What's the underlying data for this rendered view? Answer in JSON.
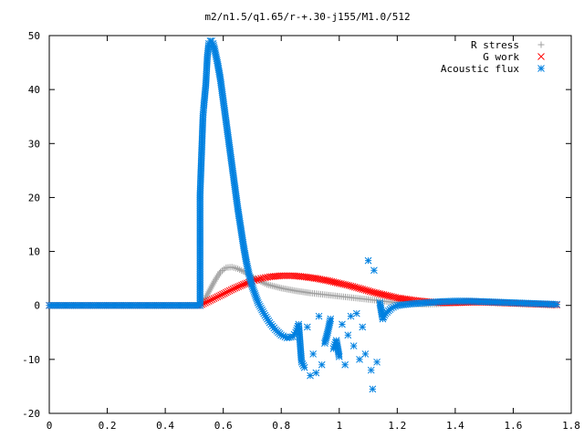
{
  "chart_data": {
    "type": "scatter",
    "title": "m2/n1.5/q1.65/r-+.30-j155/M1.0/512",
    "xlabel": "",
    "ylabel": "",
    "xlim": [
      0,
      1.8
    ],
    "ylim": [
      -20,
      50
    ],
    "x_ticks": [
      "0",
      "0.2",
      "0.4",
      "0.6",
      "0.8",
      "1",
      "1.2",
      "1.4",
      "1.6",
      "1.8"
    ],
    "y_ticks": [
      "-20",
      "-10",
      "0",
      "10",
      "20",
      "30",
      "40",
      "50"
    ],
    "grid": false,
    "legend_position": "top-right",
    "series": [
      {
        "name": "R stress",
        "marker": "plus",
        "color": "#a0a0a0",
        "points": [
          [
            0.0,
            0
          ],
          [
            0.1,
            0
          ],
          [
            0.2,
            0
          ],
          [
            0.3,
            0
          ],
          [
            0.4,
            0
          ],
          [
            0.5,
            0
          ],
          [
            0.52,
            0
          ],
          [
            0.53,
            0.5
          ],
          [
            0.55,
            2.5
          ],
          [
            0.57,
            4.5
          ],
          [
            0.59,
            6.2
          ],
          [
            0.61,
            7.0
          ],
          [
            0.63,
            7.1
          ],
          [
            0.65,
            6.8
          ],
          [
            0.67,
            6.3
          ],
          [
            0.69,
            5.6
          ],
          [
            0.71,
            5.0
          ],
          [
            0.73,
            4.4
          ],
          [
            0.75,
            3.9
          ],
          [
            0.8,
            3.2
          ],
          [
            0.85,
            2.7
          ],
          [
            0.9,
            2.3
          ],
          [
            0.95,
            2.0
          ],
          [
            1.0,
            1.7
          ],
          [
            1.05,
            1.4
          ],
          [
            1.1,
            1.1
          ],
          [
            1.15,
            0.8
          ],
          [
            1.2,
            0.5
          ],
          [
            1.25,
            0.3
          ],
          [
            1.3,
            0.2
          ],
          [
            1.35,
            0.3
          ],
          [
            1.4,
            0.5
          ],
          [
            1.45,
            0.6
          ],
          [
            1.5,
            0.6
          ],
          [
            1.55,
            0.5
          ],
          [
            1.6,
            0.4
          ],
          [
            1.65,
            0.3
          ],
          [
            1.7,
            0.2
          ],
          [
            1.75,
            0.1
          ]
        ]
      },
      {
        "name": "G work",
        "marker": "cross",
        "color": "#ff0000",
        "points": [
          [
            0.0,
            0
          ],
          [
            0.1,
            0
          ],
          [
            0.2,
            0
          ],
          [
            0.3,
            0
          ],
          [
            0.4,
            0
          ],
          [
            0.5,
            0
          ],
          [
            0.52,
            0
          ],
          [
            0.55,
            0.8
          ],
          [
            0.58,
            1.6
          ],
          [
            0.61,
            2.4
          ],
          [
            0.64,
            3.2
          ],
          [
            0.67,
            3.9
          ],
          [
            0.7,
            4.5
          ],
          [
            0.73,
            5.0
          ],
          [
            0.76,
            5.3
          ],
          [
            0.8,
            5.5
          ],
          [
            0.84,
            5.5
          ],
          [
            0.88,
            5.3
          ],
          [
            0.92,
            5.0
          ],
          [
            0.96,
            4.6
          ],
          [
            1.0,
            4.1
          ],
          [
            1.04,
            3.6
          ],
          [
            1.08,
            3.0
          ],
          [
            1.12,
            2.4
          ],
          [
            1.16,
            1.9
          ],
          [
            1.2,
            1.4
          ],
          [
            1.25,
            1.0
          ],
          [
            1.3,
            0.7
          ],
          [
            1.35,
            0.5
          ],
          [
            1.4,
            0.5
          ],
          [
            1.45,
            0.6
          ],
          [
            1.5,
            0.6
          ],
          [
            1.55,
            0.5
          ],
          [
            1.6,
            0.4
          ],
          [
            1.65,
            0.3
          ],
          [
            1.7,
            0.2
          ],
          [
            1.75,
            0.1
          ]
        ]
      },
      {
        "name": "Acoustic flux",
        "marker": "star",
        "color": "#0080e0",
        "points": [
          [
            0.0,
            0
          ],
          [
            0.1,
            0
          ],
          [
            0.2,
            0
          ],
          [
            0.3,
            0
          ],
          [
            0.4,
            0
          ],
          [
            0.5,
            0
          ],
          [
            0.52,
            0
          ],
          [
            0.52,
            20.5
          ],
          [
            0.53,
            35
          ],
          [
            0.533,
            37
          ],
          [
            0.54,
            41
          ],
          [
            0.545,
            46
          ],
          [
            0.55,
            48.5
          ],
          [
            0.555,
            49
          ],
          [
            0.56,
            49
          ],
          [
            0.565,
            48.5
          ],
          [
            0.57,
            47.5
          ],
          [
            0.58,
            45
          ],
          [
            0.59,
            42
          ],
          [
            0.6,
            38
          ],
          [
            0.61,
            34
          ],
          [
            0.62,
            30
          ],
          [
            0.63,
            26
          ],
          [
            0.64,
            22
          ],
          [
            0.65,
            18
          ],
          [
            0.66,
            14.5
          ],
          [
            0.67,
            11
          ],
          [
            0.68,
            8
          ],
          [
            0.69,
            5.5
          ],
          [
            0.7,
            3.5
          ],
          [
            0.72,
            0.5
          ],
          [
            0.74,
            -1.5
          ],
          [
            0.76,
            -3.2
          ],
          [
            0.78,
            -4.5
          ],
          [
            0.8,
            -5.5
          ],
          [
            0.82,
            -6.0
          ],
          [
            0.84,
            -5.8
          ],
          [
            0.85,
            -5.0
          ],
          [
            0.86,
            -3.5
          ],
          [
            0.87,
            -10.5
          ],
          [
            0.88,
            -11.5
          ],
          [
            0.89,
            -4.0
          ],
          [
            0.9,
            -13.0
          ],
          [
            0.91,
            -9.0
          ],
          [
            0.92,
            -12.5
          ],
          [
            0.93,
            -2.0
          ],
          [
            0.94,
            -11.0
          ],
          [
            0.95,
            -7.0
          ],
          [
            0.96,
            -5.0
          ],
          [
            0.97,
            -2.5
          ],
          [
            0.98,
            -8.0
          ],
          [
            0.99,
            -6.5
          ],
          [
            1.0,
            -9.5
          ],
          [
            1.01,
            -3.5
          ],
          [
            1.02,
            -11.0
          ],
          [
            1.03,
            -5.5
          ],
          [
            1.04,
            -2.0
          ],
          [
            1.05,
            -7.5
          ],
          [
            1.06,
            -1.5
          ],
          [
            1.07,
            -10.0
          ],
          [
            1.08,
            -4.0
          ],
          [
            1.09,
            -9.0
          ],
          [
            1.1,
            8.3
          ],
          [
            1.11,
            -12.0
          ],
          [
            1.115,
            -15.5
          ],
          [
            1.12,
            6.5
          ],
          [
            1.13,
            -10.5
          ],
          [
            1.14,
            0.5
          ],
          [
            1.15,
            -2.5
          ],
          [
            1.16,
            -1.5
          ],
          [
            1.18,
            -0.5
          ],
          [
            1.2,
            0
          ],
          [
            1.25,
            0.3
          ],
          [
            1.3,
            0.5
          ],
          [
            1.35,
            0.7
          ],
          [
            1.4,
            0.8
          ],
          [
            1.45,
            0.8
          ],
          [
            1.5,
            0.7
          ],
          [
            1.55,
            0.6
          ],
          [
            1.6,
            0.5
          ],
          [
            1.65,
            0.4
          ],
          [
            1.7,
            0.3
          ],
          [
            1.75,
            0.2
          ]
        ]
      }
    ]
  }
}
